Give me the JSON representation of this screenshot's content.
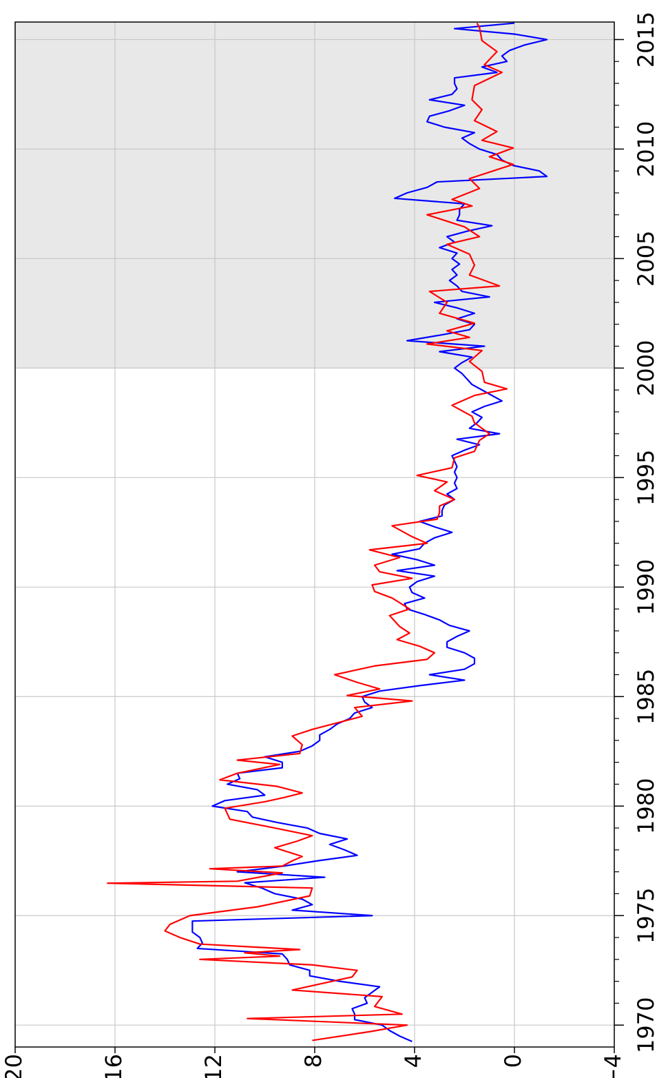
{
  "chart_data": {
    "type": "line",
    "xlim": [
      1969,
      2015.8
    ],
    "xticks": [
      1970,
      1975,
      1980,
      1985,
      1990,
      1995,
      2000,
      2005,
      2010,
      2015
    ],
    "x_minor_ticks": [
      1970,
      1971,
      1972,
      1973,
      1974,
      1975,
      1976,
      1977,
      1978,
      1979,
      1980,
      1981,
      1982,
      1983,
      1984,
      1985,
      1986,
      1987,
      1988,
      1989,
      1990,
      1991,
      1992,
      1993,
      1994,
      1995,
      1996,
      1997,
      1998,
      1999,
      2000,
      2001,
      2002,
      2003,
      2004,
      2005,
      2006,
      2007,
      2008,
      2009,
      2010,
      2011,
      2012,
      2013,
      2014,
      2015
    ],
    "ylim": [
      -4,
      20
    ],
    "yticks": [
      20,
      16,
      12,
      8,
      4,
      0,
      {
        "value": -4,
        "label": "−4"
      }
    ],
    "grid": true,
    "shaded_x": [
      2000,
      2015.8
    ],
    "shade_color": "#e8e8e8",
    "series": [
      {
        "color": "#0000ff",
        "x": [
          1969.25,
          1969.5,
          1969.75,
          1970,
          1970.25,
          1970.5,
          1970.75,
          1971,
          1971.25,
          1971.5,
          1971.75,
          1972,
          1972.25,
          1972.5,
          1972.75,
          1973,
          1973.25,
          1973.5,
          1973.75,
          1974,
          1974.25,
          1974.5,
          1974.75,
          1975,
          1975.25,
          1975.5,
          1975.75,
          1976,
          1976.25,
          1976.5,
          1976.75,
          1977,
          1977.25,
          1977.5,
          1977.75,
          1978,
          1978.25,
          1978.5,
          1978.75,
          1979,
          1979.25,
          1979.5,
          1979.75,
          1980,
          1980.25,
          1980.5,
          1980.75,
          1981,
          1981.25,
          1981.5,
          1981.75,
          1982,
          1982.25,
          1982.5,
          1982.75,
          1983,
          1983.25,
          1983.5,
          1983.75,
          1984,
          1984.25,
          1984.5,
          1984.75,
          1985,
          1985.25,
          1985.5,
          1985.75,
          1986,
          1986.25,
          1986.5,
          1986.75,
          1987,
          1987.25,
          1987.5,
          1987.75,
          1988,
          1988.25,
          1988.5,
          1988.75,
          1989,
          1989.25,
          1989.5,
          1989.75,
          1990,
          1990.25,
          1990.5,
          1990.75,
          1991,
          1991.25,
          1991.5,
          1991.75,
          1992,
          1992.25,
          1992.5,
          1992.75,
          1993,
          1993.25,
          1993.5,
          1993.75,
          1994,
          1994.25,
          1994.5,
          1994.75,
          1995,
          1995.25,
          1995.5,
          1995.75,
          1996,
          1996.25,
          1996.5,
          1996.75,
          1997,
          1997.25,
          1997.5,
          1997.75,
          1998,
          1998.25,
          1998.5,
          1998.75,
          1999,
          1999.25,
          1999.5,
          1999.75,
          2000,
          2000.25,
          2000.5,
          2000.75,
          2001,
          2001.25,
          2001.5,
          2001.75,
          2002,
          2002.25,
          2002.5,
          2002.75,
          2003,
          2003.25,
          2003.5,
          2003.75,
          2004,
          2004.25,
          2004.5,
          2004.75,
          2005,
          2005.25,
          2005.5,
          2005.75,
          2006,
          2006.25,
          2006.5,
          2006.75,
          2007,
          2007.25,
          2007.5,
          2007.75,
          2008,
          2008.25,
          2008.5,
          2008.75,
          2009,
          2009.25,
          2009.5,
          2009.75,
          2010,
          2010.25,
          2010.5,
          2010.75,
          2011,
          2011.25,
          2011.5,
          2011.75,
          2012,
          2012.25,
          2012.5,
          2012.75,
          2013,
          2013.25,
          2013.5,
          2013.75,
          2014,
          2014.25,
          2014.5,
          2014.75,
          2015,
          2015.25,
          2015.5,
          2015.75
        ],
        "values": [
          4.1,
          4.6,
          5.0,
          5.3,
          6.4,
          6.4,
          6.5,
          5.9,
          6.0,
          5.7,
          5.4,
          7.0,
          8.2,
          8.2,
          9.0,
          9.1,
          9.3,
          12.7,
          12.5,
          12.6,
          12.9,
          12.9,
          12.9,
          5.7,
          8.9,
          8.1,
          8.5,
          9.6,
          10.1,
          10.8,
          7.6,
          11.1,
          9.3,
          7.9,
          6.3,
          6.8,
          7.4,
          6.7,
          7.8,
          8.3,
          9.5,
          10.5,
          10.7,
          12.1,
          11.6,
          10.0,
          10.3,
          11.5,
          11.0,
          11.1,
          9.3,
          9.3,
          10.0,
          8.6,
          8.1,
          7.8,
          7.8,
          7.4,
          7.1,
          6.6,
          6.4,
          5.7,
          6.0,
          6.1,
          5.4,
          3.8,
          2.0,
          3.4,
          2.0,
          1.6,
          1.6,
          2.0,
          2.7,
          2.7,
          2.3,
          1.8,
          2.6,
          3.0,
          3.6,
          4.3,
          4.4,
          3.6,
          4.1,
          4.2,
          3.9,
          3.2,
          4.7,
          3.2,
          3.9,
          4.9,
          3.8,
          3.6,
          3.2,
          2.5,
          3.2,
          3.8,
          2.9,
          2.9,
          2.8,
          2.4,
          2.7,
          2.3,
          2.4,
          2.3,
          2.4,
          2.3,
          2.4,
          2.5,
          2.0,
          1.4,
          2.3,
          0.6,
          1.8,
          1.5,
          1.3,
          1.7,
          1.2,
          0.5,
          0.9,
          1.3,
          1.7,
          1.9,
          2.1,
          2.4,
          2.1,
          1.7,
          3.0,
          1.2,
          4.3,
          3.0,
          1.8,
          1.6,
          2.3,
          1.6,
          2.3,
          3.2,
          1.0,
          2.1,
          2.3,
          2.6,
          2.3,
          2.5,
          2.2,
          2.5,
          2.3,
          3.0,
          2.4,
          2.7,
          1.9,
          0.9,
          2.3,
          2.2,
          2.2,
          2.0,
          4.8,
          4.3,
          3.5,
          3.1,
          -1.3,
          -1.0,
          0.05,
          0.5,
          0.7,
          1.4,
          1.8,
          2.1,
          1.6,
          2.8,
          3.5,
          3.4,
          2.6,
          2.0,
          3.4,
          2.5,
          2.3,
          2.4,
          2.4,
          0.7,
          1.3,
          0.3,
          0.5,
          0.2,
          -0.4,
          -1.3,
          0.0,
          2.4,
          0.0
        ]
      },
      {
        "color": "#ff0000",
        "x": [
          1969.3,
          1969.7,
          1970.0,
          1970.3,
          1970.5,
          1970.85,
          1971.3,
          1971.6,
          1972.2,
          1972.5,
          1972.75,
          1973.0,
          1973.15,
          1973.3,
          1973.45,
          1973.7,
          1974.0,
          1974.3,
          1974.6,
          1975.0,
          1975.4,
          1975.9,
          1976.26,
          1976.48,
          1976.57,
          1976.95,
          1977.14,
          1977.26,
          1977.5,
          1977.7,
          1978.1,
          1978.4,
          1978.65,
          1979.0,
          1979.4,
          1979.9,
          1980.2,
          1980.4,
          1980.6,
          1980.9,
          1981.2,
          1981.5,
          1981.9,
          1982.1,
          1982.4,
          1982.8,
          1983.2,
          1983.5,
          1983.8,
          1984.1,
          1984.5,
          1984.8,
          1985.05,
          1985.35,
          1985.65,
          1986.0,
          1986.4,
          1986.7,
          1987.0,
          1987.3,
          1987.6,
          1987.9,
          1988.2,
          1988.7,
          1989.0,
          1989.5,
          1989.8,
          1990.1,
          1990.4,
          1990.7,
          1991.0,
          1991.35,
          1991.7,
          1992.0,
          1992.3,
          1992.8,
          1993.1,
          1993.4,
          1993.7,
          1994.0,
          1994.4,
          1994.8,
          1995.1,
          1995.45,
          1995.9,
          1996.2,
          1996.7,
          1997.0,
          1997.5,
          1997.8,
          1998.3,
          1998.75,
          1999.05,
          1999.35,
          1999.85,
          2000.3,
          2000.8,
          2001.1,
          2001.4,
          2001.7,
          2002.05,
          2002.5,
          2003.0,
          2003.5,
          2003.75,
          2004.25,
          2004.7,
          2005.2,
          2005.65,
          2006.0,
          2006.45,
          2007.0,
          2007.4,
          2007.7,
          2008.2,
          2008.65,
          2009.3,
          2009.65,
          2010.05,
          2010.4,
          2010.8,
          2011.3,
          2011.8,
          2012.25,
          2012.9,
          2013.5,
          2013.85,
          2014.45,
          2014.95,
          2015.55,
          2015.75
        ],
        "values": [
          8.1,
          5.8,
          4.3,
          10.7,
          4.5,
          5.6,
          5.3,
          8.9,
          6.5,
          6.3,
          8.1,
          12.6,
          9.4,
          10.8,
          8.6,
          12.6,
          13.4,
          14.0,
          13.8,
          13.0,
          10.3,
          8.2,
          8.1,
          16.3,
          11.1,
          9.3,
          12.2,
          9.3,
          8.9,
          8.5,
          9.6,
          8.7,
          8.1,
          9.6,
          11.4,
          11.6,
          10.0,
          9.2,
          8.5,
          9.5,
          11.8,
          11.1,
          9.4,
          11.1,
          8.6,
          8.5,
          8.9,
          8.1,
          7.1,
          6.1,
          6.4,
          4.1,
          6.7,
          5.4,
          6.3,
          7.2,
          5.6,
          3.5,
          3.2,
          3.8,
          4.7,
          4.2,
          4.6,
          5.0,
          4.2,
          4.9,
          5.6,
          5.7,
          4.1,
          5.4,
          5.6,
          4.6,
          5.8,
          3.5,
          4.1,
          4.9,
          3.1,
          3.0,
          3.0,
          2.4,
          3.2,
          2.7,
          3.9,
          2.5,
          2.4,
          1.6,
          1.4,
          1.0,
          1.6,
          1.7,
          2.5,
          1.6,
          0.3,
          1.2,
          1.3,
          1.8,
          1.3,
          3.5,
          1.8,
          2.7,
          1.6,
          3.0,
          2.7,
          3.4,
          0.6,
          1.8,
          1.6,
          1.8,
          2.7,
          1.4,
          2.0,
          3.5,
          1.7,
          2.5,
          1.4,
          1.8,
          0.05,
          1.0,
          0.05,
          1.3,
          0.7,
          1.6,
          1.3,
          1.7,
          1.6,
          0.5,
          1.2,
          0.7,
          1.3,
          1.4,
          1.5
        ]
      }
    ]
  }
}
